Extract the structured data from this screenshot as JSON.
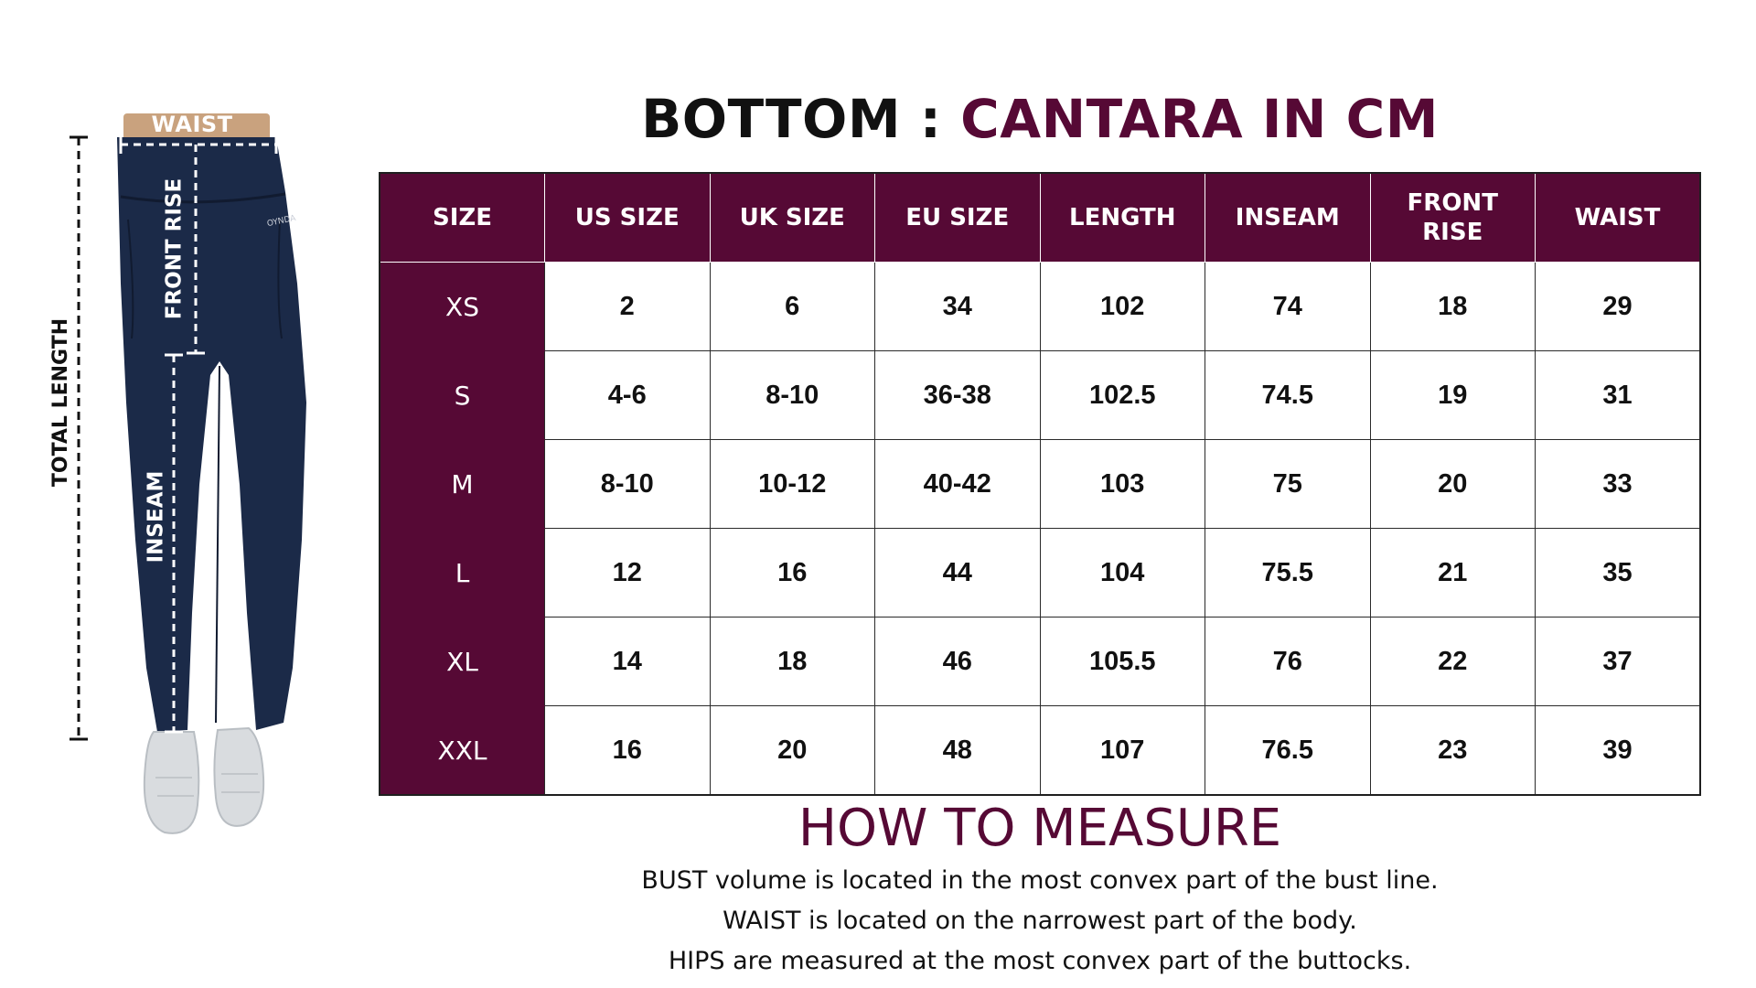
{
  "figure": {
    "waist_label": "WAIST",
    "front_rise_label": "FRONT RISE",
    "inseam_label": "INSEAM",
    "total_length_label": "TOTAL LENGTH",
    "brand_mark": "OYNDA",
    "colors": {
      "pants": "#1b2a48",
      "waistband_skin": "#c9a27e",
      "shoes": "#d9dcdf"
    }
  },
  "title": {
    "prefix": "BOTTOM :",
    "accent": "CANTARA IN CM"
  },
  "table": {
    "headers": [
      [
        "SIZE"
      ],
      [
        "US SIZE"
      ],
      [
        "UK SIZE"
      ],
      [
        "EU SIZE"
      ],
      [
        "LENGTH"
      ],
      [
        "INSEAM"
      ],
      [
        "FRONT",
        "RISE"
      ],
      [
        "WAIST"
      ]
    ],
    "rows": [
      [
        "XS",
        "2",
        "6",
        "34",
        "102",
        "74",
        "18",
        "29"
      ],
      [
        "S",
        "4-6",
        "8-10",
        "36-38",
        "102.5",
        "74.5",
        "19",
        "31"
      ],
      [
        "M",
        "8-10",
        "10-12",
        "40-42",
        "103",
        "75",
        "20",
        "33"
      ],
      [
        "L",
        "12",
        "16",
        "44",
        "104",
        "75.5",
        "21",
        "35"
      ],
      [
        "XL",
        "14",
        "18",
        "46",
        "105.5",
        "76",
        "22",
        "37"
      ],
      [
        "XXL",
        "16",
        "20",
        "48",
        "107",
        "76.5",
        "23",
        "39"
      ]
    ]
  },
  "how_to_measure": {
    "title": "HOW TO MEASURE",
    "lines": [
      "BUST volume is located in the most convex part of the bust line.",
      "WAIST is located on the narrowest part of the body.",
      "HIPS are measured at the most convex part of the buttocks."
    ]
  },
  "colors": {
    "accent": "#560935",
    "text": "#111111",
    "background": "#ffffff"
  }
}
